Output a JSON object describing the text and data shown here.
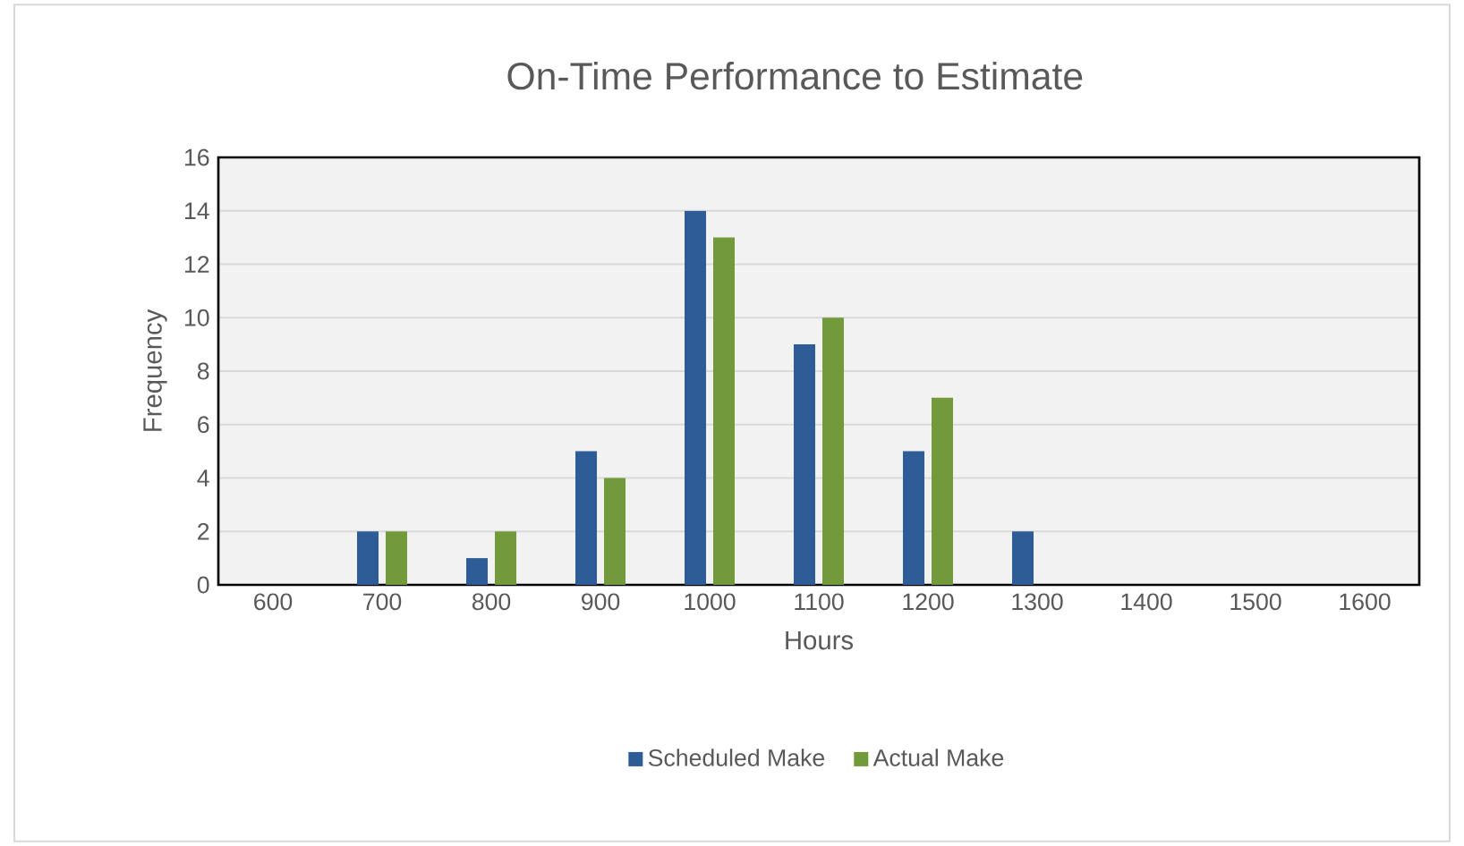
{
  "chart_data": {
    "type": "bar",
    "title": "On-Time Performance to Estimate",
    "xlabel": "Hours",
    "ylabel": "Frequency",
    "categories": [
      "600",
      "700",
      "800",
      "900",
      "1000",
      "1100",
      "1200",
      "1300",
      "1400",
      "1500",
      "1600"
    ],
    "series": [
      {
        "name": "Scheduled Make",
        "color": "#2e5c96",
        "values": [
          0,
          2,
          1,
          5,
          14,
          9,
          5,
          2,
          0,
          0,
          0
        ]
      },
      {
        "name": "Actual Make",
        "color": "#72993a",
        "values": [
          0,
          2,
          2,
          4,
          13,
          10,
          7,
          0,
          0,
          0,
          0
        ]
      }
    ],
    "ylim": [
      0,
      16
    ],
    "yticks": [
      0,
      2,
      4,
      6,
      8,
      10,
      12,
      14,
      16
    ],
    "grid": "y",
    "legend": "bottom"
  }
}
